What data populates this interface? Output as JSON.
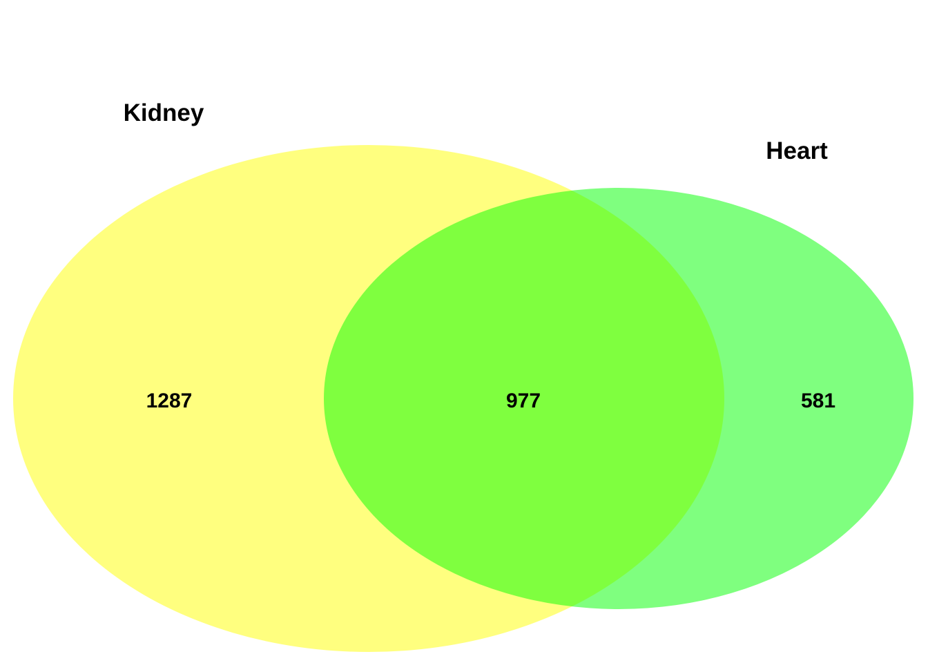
{
  "venn": {
    "sets": [
      {
        "name": "Kidney",
        "only_count": "1287",
        "color": "#FFFF00"
      },
      {
        "name": "Heart",
        "only_count": "581",
        "color": "#00FF00"
      }
    ],
    "intersection_count": "977",
    "fill_opacity": 0.5
  }
}
